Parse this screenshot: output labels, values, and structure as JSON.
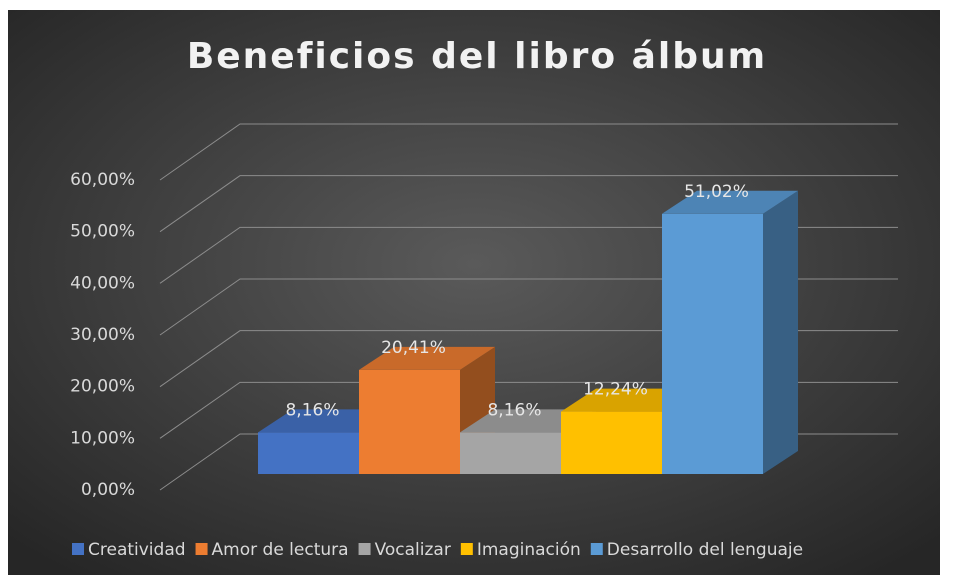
{
  "chart_data": {
    "type": "bar3d",
    "title": "Beneficios del libro álbum",
    "series": [
      {
        "name": "Creatividad",
        "color": "#4472c4",
        "values": [
          8.16
        ],
        "value_labels": [
          "8,16%"
        ]
      },
      {
        "name": "Amor de lectura",
        "color": "#ed7d31",
        "values": [
          20.41
        ],
        "value_labels": [
          "20,41%"
        ]
      },
      {
        "name": "Vocalizar",
        "color": "#a5a5a5",
        "values": [
          8.16
        ],
        "value_labels": [
          "8,16%"
        ]
      },
      {
        "name": "Imaginación",
        "color": "#ffc000",
        "values": [
          12.24
        ],
        "value_labels": [
          "12,24%"
        ]
      },
      {
        "name": "Desarrollo del lenguaje",
        "color": "#5b9bd5",
        "values": [
          51.02
        ],
        "value_labels": [
          "51,02%"
        ]
      }
    ],
    "ylim": [
      0,
      60
    ],
    "yticks": [
      {
        "value": 0,
        "label": "0,00%"
      },
      {
        "value": 10,
        "label": "10,00%"
      },
      {
        "value": 20,
        "label": "20,00%"
      },
      {
        "value": 30,
        "label": "30,00%"
      },
      {
        "value": 40,
        "label": "40,00%"
      },
      {
        "value": 50,
        "label": "50,00%"
      },
      {
        "value": 60,
        "label": "60,00%"
      }
    ],
    "grid": true,
    "legend": "bottom"
  }
}
